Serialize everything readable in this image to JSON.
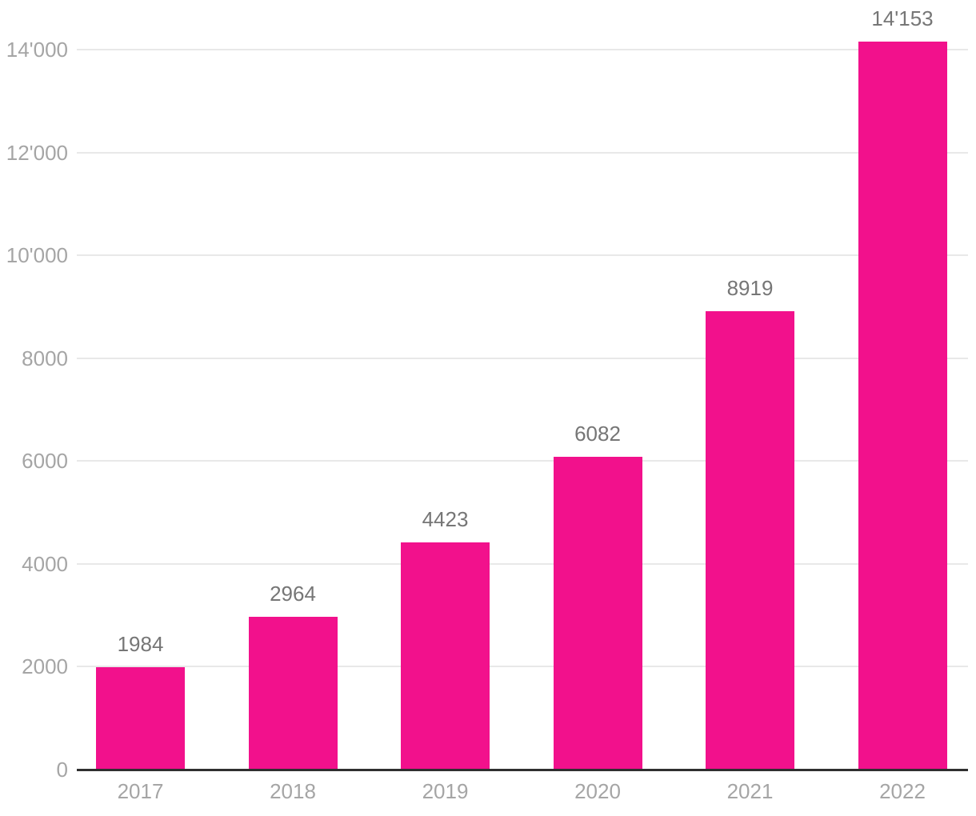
{
  "chart_data": {
    "type": "bar",
    "title": "",
    "xlabel": "",
    "ylabel": "",
    "categories": [
      "2017",
      "2018",
      "2019",
      "2020",
      "2021",
      "2022"
    ],
    "values": [
      1984,
      2964,
      4423,
      6082,
      8919,
      14153
    ],
    "value_labels": [
      "1984",
      "2964",
      "4423",
      "6082",
      "8919",
      "14'153"
    ],
    "y_ticks": [
      0,
      2000,
      4000,
      6000,
      8000,
      10000,
      12000,
      14000
    ],
    "y_tick_labels": [
      "0",
      "2000",
      "4000",
      "6000",
      "8000",
      "10'000",
      "12'000",
      "14'000"
    ],
    "ylim": [
      0,
      14000
    ],
    "grid": true,
    "legend": false,
    "thousands_separator": "'"
  },
  "colors": {
    "background": "#FFFFFF",
    "bar": "#F2118C",
    "grid_line": "#E8E8E8",
    "axis_line": "#2F2F2F",
    "tick_label": "#A5A5A5",
    "value_label": "#767676"
  }
}
